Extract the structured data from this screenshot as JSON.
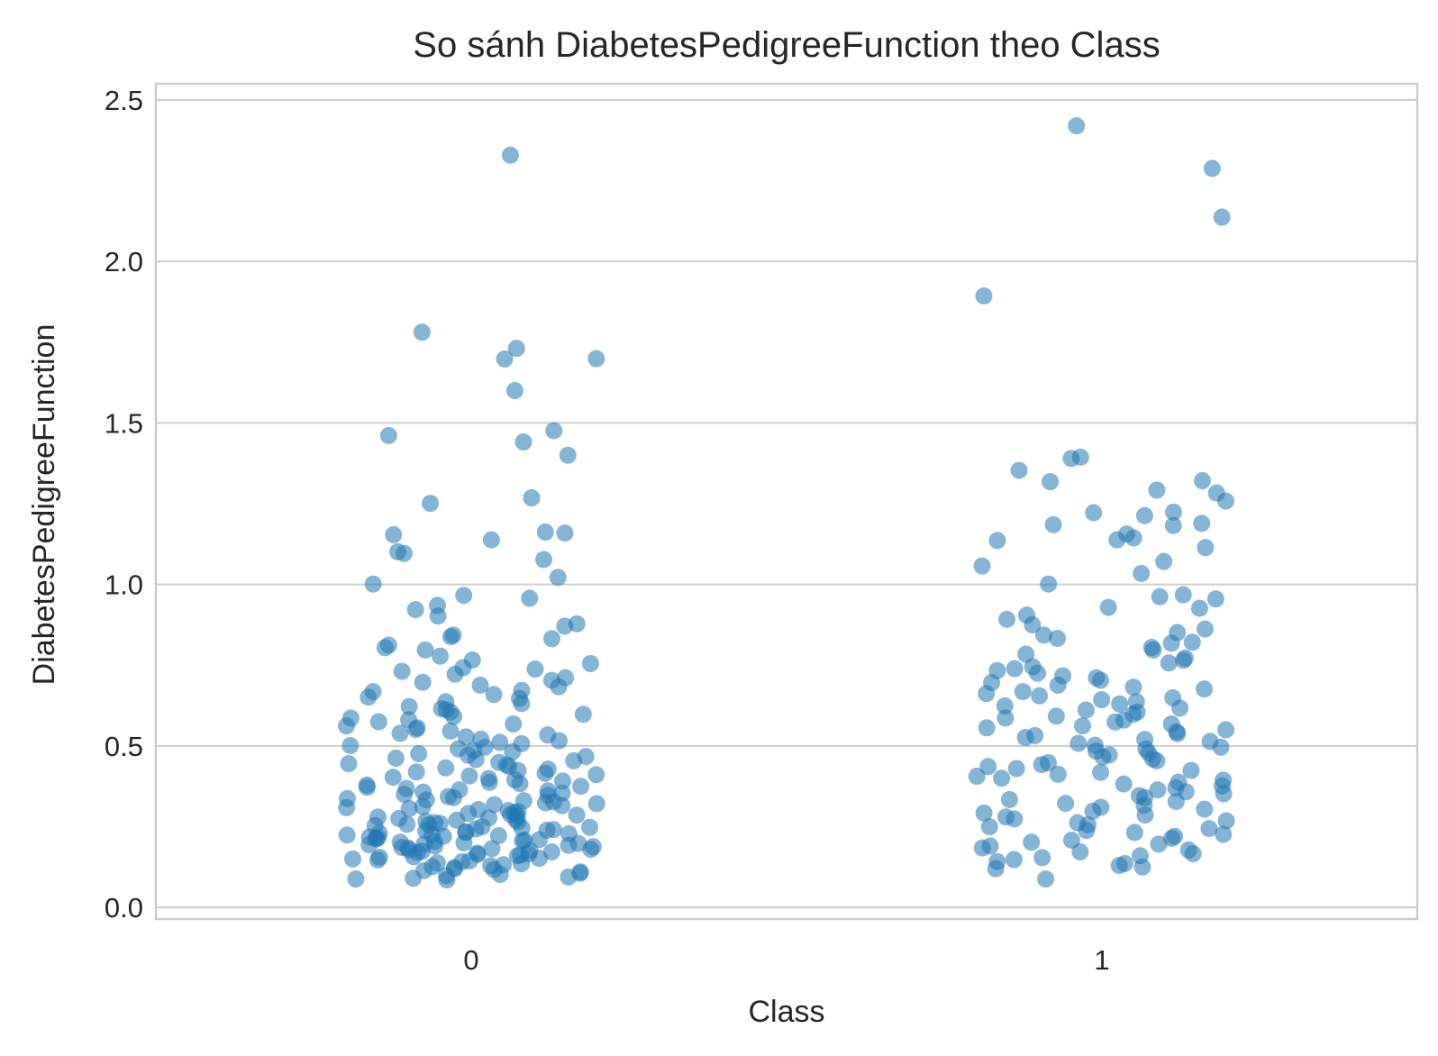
{
  "chart_data": {
    "type": "scatter",
    "style": "strip",
    "title": "So sánh DiabetesPedigreeFunction theo Class",
    "xlabel": "Class",
    "ylabel": "DiabetesPedigreeFunction",
    "categories": [
      "0",
      "1"
    ],
    "ylim": [
      -0.036,
      2.55
    ],
    "yticks": [
      0.0,
      0.5,
      1.0,
      1.5,
      2.0,
      2.5
    ],
    "ytick_labels": [
      "0.0",
      "0.5",
      "1.0",
      "1.5",
      "2.0",
      "2.5"
    ],
    "grid": true,
    "grid_axis": "y",
    "legend": "none",
    "marker_color": "#1f77b4",
    "series": [
      {
        "category": "0",
        "values": [
          2.329,
          1.781,
          1.698,
          1.699,
          1.731,
          1.6,
          1.461,
          1.4,
          1.441,
          1.476,
          1.268,
          1.251,
          1.162,
          1.154,
          1.138,
          1.096,
          1.101,
          1.077,
          1.159,
          1.022,
          1.001,
          0.966,
          0.957,
          0.935,
          0.922,
          0.902,
          0.878,
          0.871,
          0.838,
          0.843,
          0.832,
          0.812,
          0.804,
          0.797,
          0.778,
          0.766,
          0.755,
          0.742,
          0.738,
          0.731,
          0.722,
          0.711,
          0.703,
          0.697,
          0.688,
          0.683,
          0.672,
          0.668,
          0.659,
          0.651,
          0.647,
          0.637,
          0.631,
          0.622,
          0.615,
          0.612,
          0.605,
          0.598,
          0.591,
          0.586,
          0.581,
          0.575,
          0.568,
          0.562,
          0.556,
          0.551,
          0.546,
          0.539,
          0.534,
          0.528,
          0.521,
          0.516,
          0.511,
          0.507,
          0.501,
          0.496,
          0.491,
          0.486,
          0.482,
          0.476,
          0.471,
          0.467,
          0.462,
          0.458,
          0.454,
          0.449,
          0.445,
          0.441,
          0.437,
          0.432,
          0.428,
          0.424,
          0.419,
          0.415,
          0.411,
          0.407,
          0.403,
          0.399,
          0.395,
          0.391,
          0.387,
          0.383,
          0.379,
          0.375,
          0.372,
          0.368,
          0.364,
          0.361,
          0.357,
          0.354,
          0.35,
          0.347,
          0.343,
          0.34,
          0.337,
          0.333,
          0.33,
          0.327,
          0.324,
          0.321,
          0.318,
          0.315,
          0.312,
          0.309,
          0.306,
          0.303,
          0.3,
          0.297,
          0.294,
          0.291,
          0.288,
          0.286,
          0.283,
          0.28,
          0.277,
          0.275,
          0.272,
          0.27,
          0.267,
          0.265,
          0.262,
          0.26,
          0.257,
          0.255,
          0.253,
          0.25,
          0.248,
          0.246,
          0.243,
          0.241,
          0.239,
          0.237,
          0.234,
          0.232,
          0.23,
          0.228,
          0.226,
          0.224,
          0.222,
          0.22,
          0.218,
          0.216,
          0.214,
          0.212,
          0.21,
          0.208,
          0.206,
          0.204,
          0.202,
          0.2,
          0.198,
          0.196,
          0.194,
          0.192,
          0.19,
          0.188,
          0.186,
          0.184,
          0.182,
          0.18,
          0.178,
          0.176,
          0.174,
          0.172,
          0.17,
          0.168,
          0.166,
          0.164,
          0.162,
          0.16,
          0.157,
          0.155,
          0.152,
          0.15,
          0.147,
          0.144,
          0.141,
          0.138,
          0.135,
          0.132,
          0.129,
          0.126,
          0.123,
          0.12,
          0.117,
          0.114,
          0.11,
          0.106,
          0.102,
          0.098,
          0.094,
          0.09,
          0.088,
          0.085
        ]
      },
      {
        "category": "1",
        "values": [
          2.42,
          2.288,
          2.137,
          1.893,
          1.394,
          1.39,
          1.353,
          1.321,
          1.318,
          1.283,
          1.292,
          1.258,
          1.224,
          1.222,
          1.213,
          1.189,
          1.185,
          1.182,
          1.156,
          1.144,
          1.138,
          1.136,
          1.114,
          1.071,
          1.057,
          1.034,
          1.001,
          0.968,
          0.962,
          0.955,
          0.929,
          0.926,
          0.905,
          0.892,
          0.875,
          0.862,
          0.851,
          0.843,
          0.833,
          0.821,
          0.818,
          0.805,
          0.797,
          0.784,
          0.772,
          0.765,
          0.757,
          0.745,
          0.739,
          0.733,
          0.725,
          0.717,
          0.711,
          0.703,
          0.696,
          0.688,
          0.682,
          0.676,
          0.668,
          0.662,
          0.655,
          0.649,
          0.643,
          0.637,
          0.63,
          0.624,
          0.617,
          0.611,
          0.605,
          0.598,
          0.592,
          0.586,
          0.58,
          0.574,
          0.568,
          0.562,
          0.556,
          0.55,
          0.544,
          0.538,
          0.532,
          0.526,
          0.52,
          0.514,
          0.508,
          0.502,
          0.496,
          0.49,
          0.484,
          0.478,
          0.472,
          0.466,
          0.46,
          0.454,
          0.448,
          0.442,
          0.436,
          0.43,
          0.424,
          0.418,
          0.412,
          0.406,
          0.4,
          0.394,
          0.388,
          0.382,
          0.376,
          0.37,
          0.364,
          0.358,
          0.352,
          0.346,
          0.34,
          0.334,
          0.328,
          0.322,
          0.316,
          0.31,
          0.304,
          0.298,
          0.292,
          0.286,
          0.28,
          0.274,
          0.268,
          0.262,
          0.256,
          0.25,
          0.244,
          0.238,
          0.232,
          0.226,
          0.22,
          0.214,
          0.208,
          0.202,
          0.196,
          0.19,
          0.184,
          0.178,
          0.172,
          0.166,
          0.16,
          0.154,
          0.148,
          0.142,
          0.136,
          0.13,
          0.125,
          0.12,
          0.088
        ]
      }
    ]
  }
}
